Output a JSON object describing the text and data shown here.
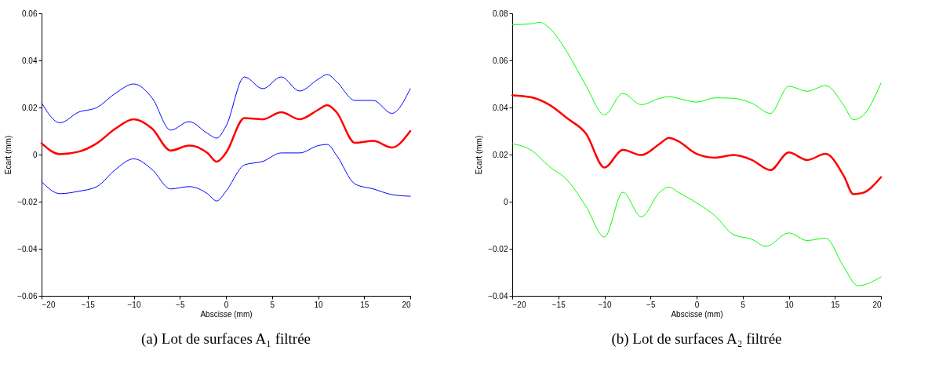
{
  "chart_data": [
    {
      "type": "line",
      "title": "(a) Lot de surfaces A₁ filtrée",
      "xlabel": "Abscisse (mm)",
      "ylabel": "Ecart (mm)",
      "xlim": [
        -20,
        20
      ],
      "xticks": [
        -20,
        -15,
        -10,
        -5,
        0,
        5,
        10,
        15,
        20
      ],
      "ylim": [
        -0.06,
        0.06
      ],
      "yticks": [
        -0.06,
        -0.04,
        -0.02,
        0,
        0.02,
        0.04,
        0.06
      ],
      "grid": false,
      "series": [
        {
          "color": "#0000ff",
          "x": [
            -20,
            -18,
            -16,
            -14,
            -12,
            -10,
            -8,
            -6,
            -4,
            -2,
            -1,
            0,
            2,
            4,
            6,
            8,
            10,
            11,
            12,
            14,
            16,
            18,
            20
          ],
          "values": [
            0.022,
            0.0135,
            0.018,
            0.02,
            0.026,
            0.03,
            0.024,
            0.0104,
            0.014,
            0.009,
            0.007,
            0.012,
            0.033,
            0.028,
            0.033,
            0.027,
            0.032,
            0.034,
            0.031,
            0.023,
            0.023,
            0.0175,
            0.028
          ]
        },
        {
          "color": "#0000ff",
          "x": [
            -20,
            -18,
            -16,
            -14,
            -12,
            -10,
            -8,
            -6,
            -4,
            -2,
            -1,
            0,
            2,
            4,
            6,
            8,
            10,
            11,
            12,
            14,
            16,
            18,
            20
          ],
          "values": [
            -0.0115,
            -0.0166,
            -0.0156,
            -0.0136,
            -0.0064,
            -0.0018,
            -0.0064,
            -0.0146,
            -0.0136,
            -0.0166,
            -0.0197,
            -0.0156,
            -0.0044,
            -0.0029,
            0.0007,
            0.0007,
            0.0038,
            0.0043,
            -0.0003,
            -0.0125,
            -0.0146,
            -0.017,
            -0.0177
          ]
        },
        {
          "color": "#ff0000",
          "x": [
            -20,
            -18,
            -16,
            -14,
            -12,
            -10,
            -8,
            -6,
            -4,
            -2,
            -1,
            0,
            2,
            4,
            6,
            8,
            10,
            11,
            12,
            14,
            16,
            18,
            20
          ],
          "values": [
            0.0048,
            0.0002,
            0.0012,
            0.0048,
            0.011,
            0.015,
            0.011,
            0.0017,
            0.0038,
            0.0007,
            -0.003,
            0.0007,
            0.0155,
            0.015,
            0.018,
            0.015,
            0.019,
            0.021,
            0.018,
            0.005,
            0.0058,
            0.003,
            0.01
          ]
        }
      ]
    },
    {
      "type": "line",
      "title": "(b) Lot de surfaces A₂ filtrée",
      "xlabel": "Abscisse (mm)",
      "ylabel": "Ecart (mm)",
      "xlim": [
        -20,
        20
      ],
      "xticks": [
        -20,
        -15,
        -10,
        -5,
        0,
        5,
        10,
        15,
        20
      ],
      "ylim": [
        -0.04,
        0.08
      ],
      "yticks": [
        -0.04,
        -0.02,
        0,
        0.02,
        0.04,
        0.06,
        0.08
      ],
      "grid": false,
      "series": [
        {
          "color": "#00ff00",
          "x": [
            -20,
            -18,
            -17,
            -16,
            -14,
            -12,
            -10,
            -8,
            -6,
            -4,
            -3,
            -2,
            0,
            2,
            4,
            6,
            8,
            10,
            12,
            14,
            16,
            17,
            18,
            20
          ],
          "values": [
            0.0752,
            0.0755,
            0.0762,
            0.0739,
            0.0632,
            0.0493,
            0.0369,
            0.046,
            0.0412,
            0.0439,
            0.0446,
            0.0439,
            0.0423,
            0.0441,
            0.0439,
            0.0418,
            0.0375,
            0.049,
            0.0469,
            0.0493,
            0.0407,
            0.0348,
            0.0364,
            0.0503
          ]
        },
        {
          "color": "#00ff00",
          "x": [
            -20,
            -18,
            -16,
            -14,
            -12,
            -10,
            -8,
            -6,
            -4,
            -3,
            -2,
            0,
            2,
            4,
            6,
            7.5,
            10,
            12,
            14,
            16,
            17.5,
            20
          ],
          "values": [
            0.0246,
            0.022,
            0.015,
            0.009,
            -0.002,
            -0.015,
            0.004,
            -0.0064,
            0.004,
            0.0062,
            0.004,
            -0.0005,
            -0.006,
            -0.014,
            -0.016,
            -0.019,
            -0.0133,
            -0.0165,
            -0.0155,
            -0.028,
            -0.0357,
            -0.032
          ]
        },
        {
          "color": "#ff0000",
          "x": [
            -20,
            -18,
            -16,
            -14,
            -12,
            -10,
            -8,
            -6,
            -4,
            -3,
            -2,
            0,
            2,
            4,
            6,
            8,
            10,
            12,
            14,
            16,
            17,
            18,
            20
          ],
          "values": [
            0.0452,
            0.0444,
            0.0412,
            0.0353,
            0.0289,
            0.0145,
            0.022,
            0.0198,
            0.0246,
            0.0271,
            0.0257,
            0.0203,
            0.0187,
            0.0198,
            0.0177,
            0.0134,
            0.0209,
            0.0177,
            0.0203,
            0.0107,
            0.0032,
            0.0037,
            0.0104
          ]
        }
      ]
    }
  ]
}
